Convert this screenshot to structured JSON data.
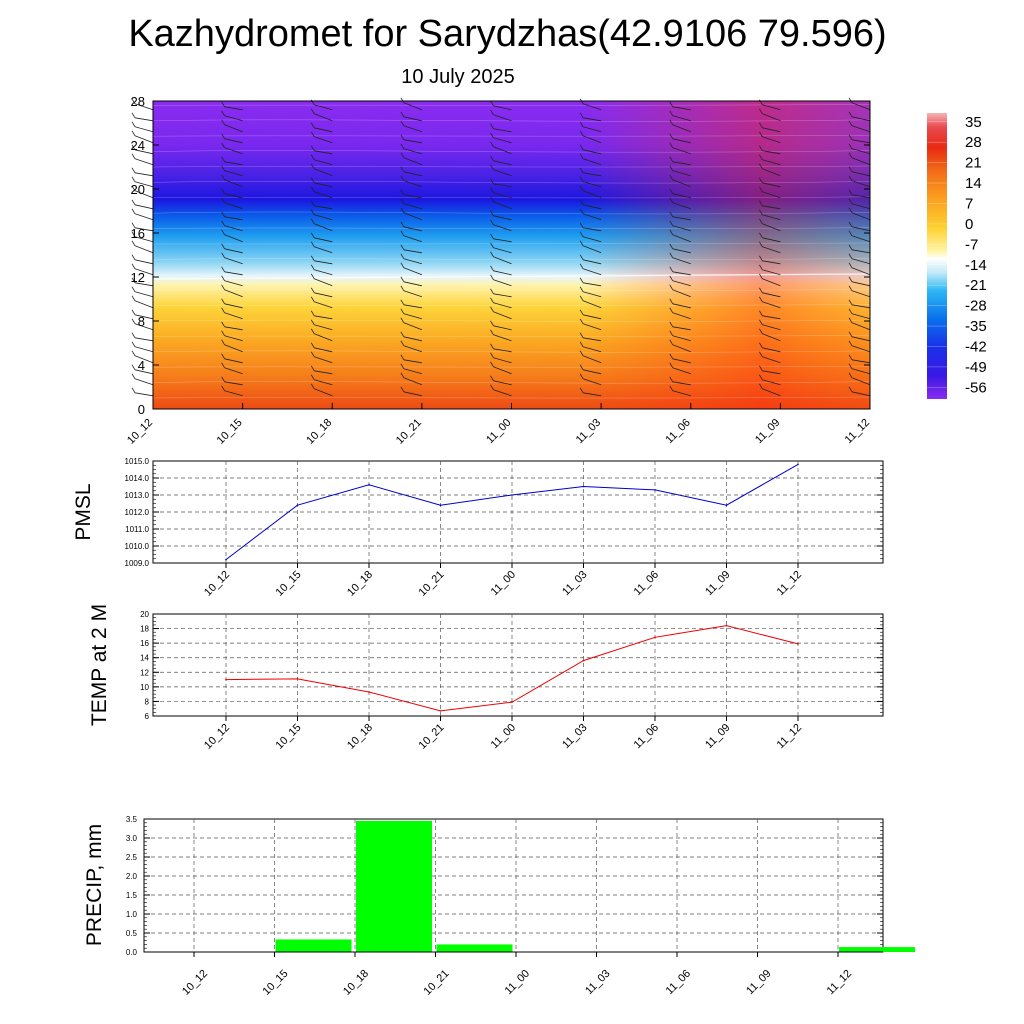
{
  "title": "Kazhydromet for Sarydzhas(42.9106 79.596)",
  "date": "10 July 2025",
  "colors": {
    "pmsl_line": "#0000cc",
    "temp_line": "#ee0000",
    "precip_bar": "#00ff00",
    "grid": "#555555"
  },
  "chart_data": [
    {
      "type": "heatmap",
      "xticks": [
        "10_12",
        "10_15",
        "10_18",
        "10_21",
        "11_00",
        "11_03",
        "11_06",
        "11_09",
        "11_12"
      ],
      "ylim": [
        0,
        28
      ],
      "yticks": [
        0,
        4,
        8,
        12,
        16,
        20,
        24,
        28
      ],
      "colorbar_labels": [
        "35",
        "28",
        "21",
        "14",
        "7",
        "0",
        "-7",
        "-14",
        "-21",
        "-28",
        "-35",
        "-42",
        "-49",
        "-56"
      ],
      "colorbar_range": [
        -60,
        38
      ],
      "zero_level_height": 12,
      "wind_barbs": true
    },
    {
      "type": "line",
      "ylabel": "PMSL",
      "categories": [
        "10_12",
        "10_15",
        "10_18",
        "10_21",
        "11_00",
        "11_03",
        "11_06",
        "11_09",
        "11_12"
      ],
      "values": [
        1009.2,
        1012.4,
        1013.6,
        1012.4,
        1013.0,
        1013.5,
        1013.3,
        1012.4,
        1014.8
      ],
      "ylim": [
        1009.0,
        1015.0
      ],
      "yticks": [
        "1009.0",
        "1010.0",
        "1011.0",
        "1012.0",
        "1013.0",
        "1014.0",
        "1015.0"
      ],
      "grid": true
    },
    {
      "type": "line",
      "ylabel": "TEMP at 2 M",
      "categories": [
        "10_12",
        "10_15",
        "10_18",
        "10_21",
        "11_00",
        "11_03",
        "11_06",
        "11_09",
        "11_12"
      ],
      "values": [
        11.0,
        11.1,
        9.3,
        6.7,
        7.9,
        13.6,
        16.8,
        18.4,
        15.9
      ],
      "ylim": [
        6,
        20
      ],
      "yticks": [
        "6",
        "8",
        "10",
        "12",
        "14",
        "16",
        "18",
        "20"
      ],
      "grid": true
    },
    {
      "type": "bar",
      "ylabel": "PRECIP, mm",
      "categories": [
        "10_12",
        "10_15",
        "10_18",
        "10_21",
        "11_00",
        "11_03",
        "11_06",
        "11_09",
        "11_12"
      ],
      "values": [
        0.0,
        0.33,
        3.45,
        0.2,
        0.0,
        0.0,
        0.0,
        0.0,
        0.13
      ],
      "ylim": [
        0,
        3.5
      ],
      "yticks": [
        "0.0",
        "0.5",
        "1.0",
        "1.5",
        "2.0",
        "2.5",
        "3.0",
        "3.5"
      ],
      "grid": true
    }
  ]
}
